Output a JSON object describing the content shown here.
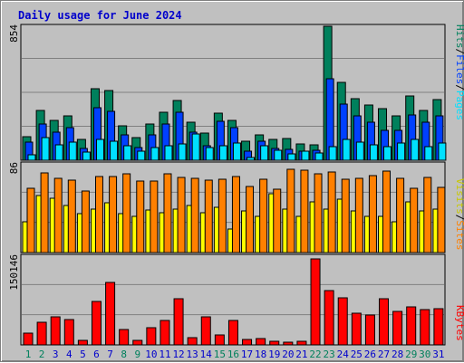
{
  "title": "Daily usage for June 2024",
  "colors": {
    "hits": "#00805c",
    "files": "#0040ff",
    "pages": "#00e0ff",
    "visits": "#ffff00",
    "sites": "#ff8000",
    "kbytes": "#ff0000",
    "weekend_day": "#00805c",
    "weekday": "#0000cc"
  },
  "chart_data": [
    {
      "type": "bar",
      "panel": "hits-files-pages",
      "max_label": "854",
      "side_legend": [
        "Pages",
        "/",
        "Files",
        "/",
        "Hits"
      ],
      "x": [
        1,
        2,
        3,
        4,
        5,
        6,
        7,
        8,
        9,
        10,
        11,
        12,
        13,
        14,
        15,
        16,
        17,
        18,
        19,
        20,
        21,
        22,
        23,
        24,
        25,
        26,
        27,
        28,
        29,
        30,
        31
      ],
      "ylim": [
        0,
        854
      ],
      "series": [
        {
          "name": "Hits",
          "values": [
            150,
            320,
            255,
            280,
            130,
            455,
            445,
            220,
            145,
            230,
            305,
            380,
            245,
            175,
            300,
            255,
            120,
            160,
            130,
            140,
            105,
            100,
            854,
            495,
            395,
            350,
            330,
            285,
            410,
            320,
            385
          ]
        },
        {
          "name": "Files",
          "values": [
            115,
            230,
            180,
            205,
            75,
            335,
            310,
            160,
            80,
            160,
            230,
            305,
            180,
            95,
            250,
            205,
            60,
            120,
            75,
            70,
            55,
            65,
            520,
            360,
            280,
            240,
            190,
            190,
            290,
            240,
            280
          ]
        },
        {
          "name": "Pages",
          "values": [
            35,
            145,
            100,
            115,
            50,
            130,
            120,
            95,
            55,
            80,
            95,
            105,
            170,
            80,
            95,
            110,
            20,
            95,
            65,
            40,
            55,
            45,
            85,
            130,
            115,
            100,
            85,
            110,
            130,
            85,
            110
          ]
        }
      ]
    },
    {
      "type": "bar",
      "panel": "visits-sites",
      "max_label": "86",
      "side_legend": [
        "Sites",
        "/",
        "Visits"
      ],
      "x": [
        1,
        2,
        3,
        4,
        5,
        6,
        7,
        8,
        9,
        10,
        11,
        12,
        13,
        14,
        15,
        16,
        17,
        18,
        19,
        20,
        21,
        22,
        23,
        24,
        25,
        26,
        27,
        28,
        29,
        30,
        31
      ],
      "ylim": [
        0,
        86
      ],
      "series": [
        {
          "name": "Visits",
          "values": [
            30,
            55,
            53,
            46,
            38,
            42,
            48,
            38,
            35,
            41,
            39,
            42,
            46,
            39,
            44,
            23,
            40,
            35,
            57,
            42,
            35,
            49,
            42,
            52,
            40,
            35,
            35,
            30,
            49,
            40,
            42
          ]
        },
        {
          "name": "Sites",
          "values": [
            62,
            77,
            72,
            70,
            60,
            74,
            74,
            76,
            69,
            69,
            76,
            73,
            72,
            70,
            71,
            74,
            64,
            71,
            61,
            81,
            80,
            76,
            78,
            71,
            72,
            75,
            79,
            72,
            62,
            73,
            63
          ]
        }
      ]
    },
    {
      "type": "bar",
      "panel": "kbytes",
      "max_label": "150146",
      "side_legend": [
        "KBytes"
      ],
      "x": [
        1,
        2,
        3,
        4,
        5,
        6,
        7,
        8,
        9,
        10,
        11,
        12,
        13,
        14,
        15,
        16,
        17,
        18,
        19,
        20,
        21,
        22,
        23,
        24,
        25,
        26,
        27,
        28,
        29,
        30,
        31
      ],
      "ylim": [
        0,
        150146
      ],
      "series": [
        {
          "name": "KBytes",
          "values": [
            20000,
            38000,
            47000,
            43000,
            7000,
            73000,
            105000,
            26000,
            7000,
            29000,
            41000,
            78000,
            12000,
            47000,
            17000,
            41000,
            9000,
            11000,
            6000,
            5000,
            6000,
            146000,
            92000,
            79000,
            53000,
            50000,
            78000,
            56000,
            65000,
            59000,
            62000
          ]
        }
      ]
    }
  ]
}
